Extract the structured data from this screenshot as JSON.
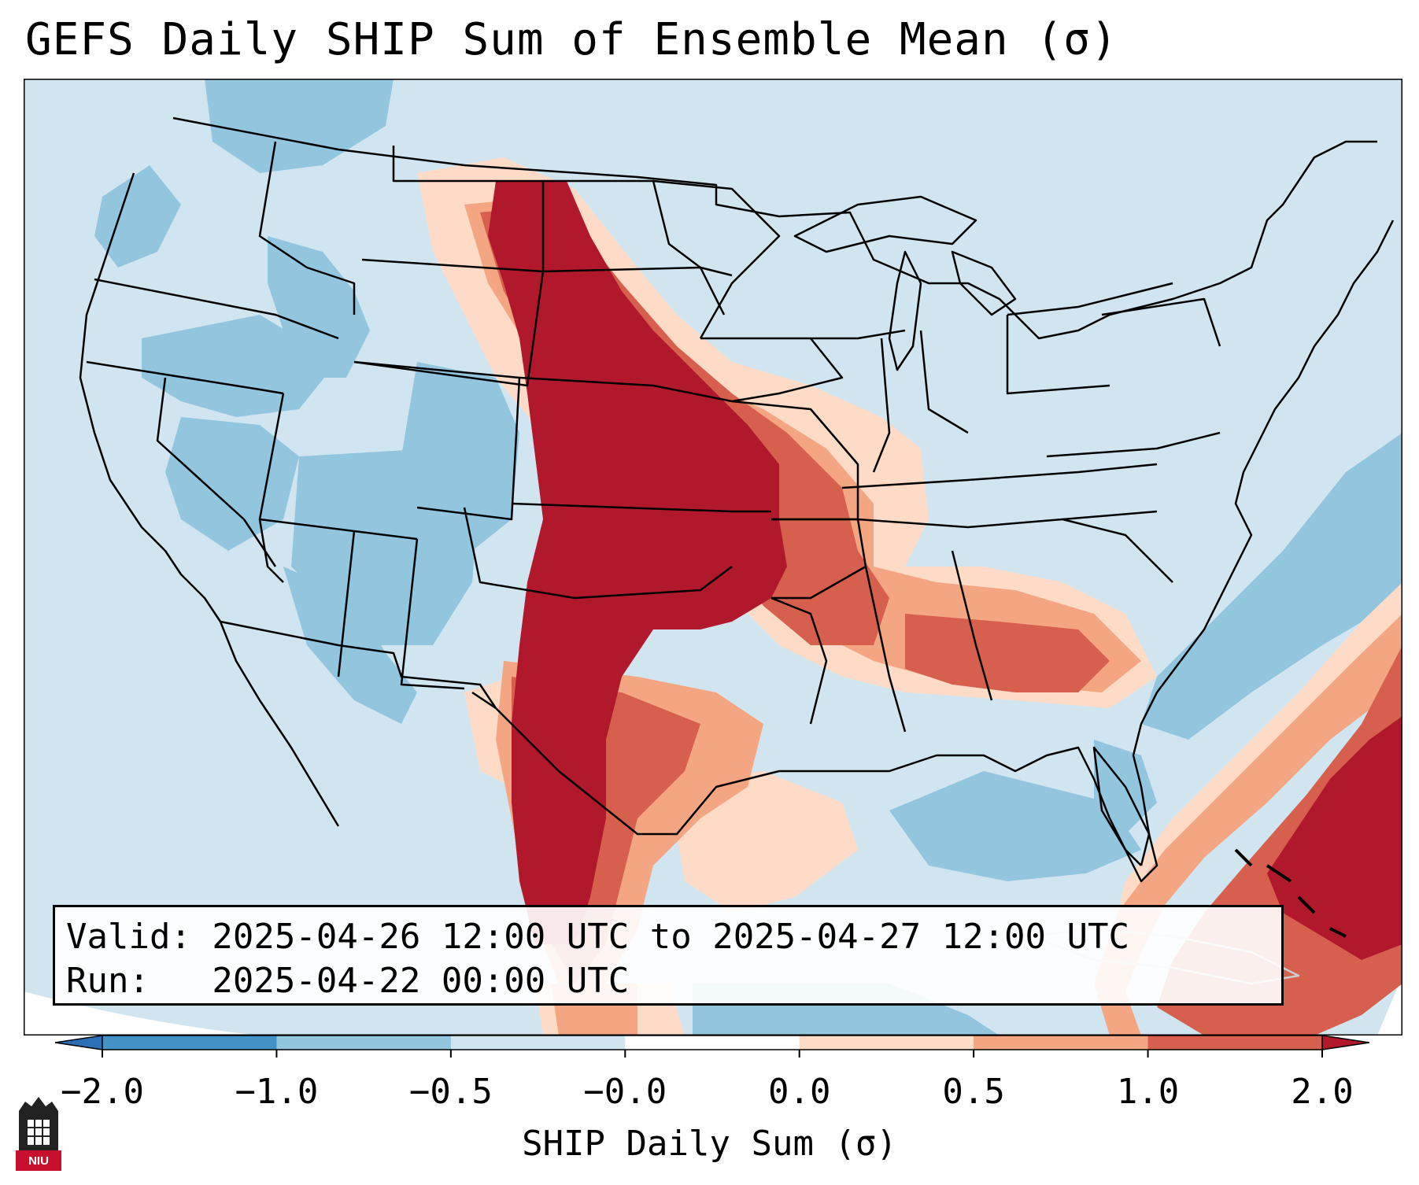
{
  "title": "GEFS Daily SHIP Sum of Ensemble Mean (σ)",
  "valid_line": "Valid: 2025-04-26 12:00 UTC to 2025-04-27 12:00 UTC",
  "run_line": "Run:   2025-04-22 00:00 UTC",
  "colorbar": {
    "label": "SHIP Daily Sum (σ)",
    "ticks": [
      "−2.0",
      "−1.0",
      "−0.5",
      "−0.0",
      "0.0",
      "0.5",
      "1.0",
      "2.0"
    ],
    "bins": [
      {
        "range": "<-2.0",
        "color": "#2b6fb6"
      },
      {
        "range": "-2.0 to -1.0",
        "color": "#4292c6"
      },
      {
        "range": "-1.0 to -0.5",
        "color": "#92c5de"
      },
      {
        "range": "-0.5 to 0.0",
        "color": "#d1e5f0"
      },
      {
        "range": "0.0 to 0.0",
        "color": "#ffffff"
      },
      {
        "range": "0.0 to 0.5",
        "color": "#fddbc7"
      },
      {
        "range": "0.5 to 1.0",
        "color": "#f4a582"
      },
      {
        "range": "1.0 to 2.0",
        "color": "#d6604d"
      },
      {
        "range": ">2.0",
        "color": "#b2182b"
      }
    ]
  },
  "logo_text": "NIU",
  "chart_data": {
    "type": "heatmap",
    "title": "GEFS Daily SHIP Sum of Ensemble Mean (σ)",
    "colorbar_label": "SHIP Daily Sum (σ)",
    "levels": [
      -2.0,
      -1.0,
      -0.5,
      -0.0,
      0.0,
      0.5,
      1.0,
      2.0
    ],
    "extend": "both",
    "regions": [
      {
        "region": "Great Plains (TX panhandle, OK, KS, NE, SD, western ND)",
        "category": "> 2.0"
      },
      {
        "region": "Central/East Texas, western Arkansas, Missouri",
        "category": "1.0 to 2.0"
      },
      {
        "region": "Lower Mississippi Valley and Deep South (MS, AL, GA, SC)",
        "category": "0.5 to 1.0"
      },
      {
        "region": "Iowa, Illinois, Kentucky, Tennessee",
        "category": "0.0 to 0.5"
      },
      {
        "region": "Western Atlantic east of Florida and Bahamas",
        "category": "1.0 to > 2.0"
      },
      {
        "region": "Intermountain West (NV, UT, ID, OR)",
        "category": "-1.0 to -0.5"
      },
      {
        "region": "Northeast, Great Lakes, Pacific coast",
        "category": "-0.5 to 0.0"
      },
      {
        "region": "Atlantic off the Mid-Atlantic coast",
        "category": "-1.0 to -0.5"
      }
    ]
  }
}
